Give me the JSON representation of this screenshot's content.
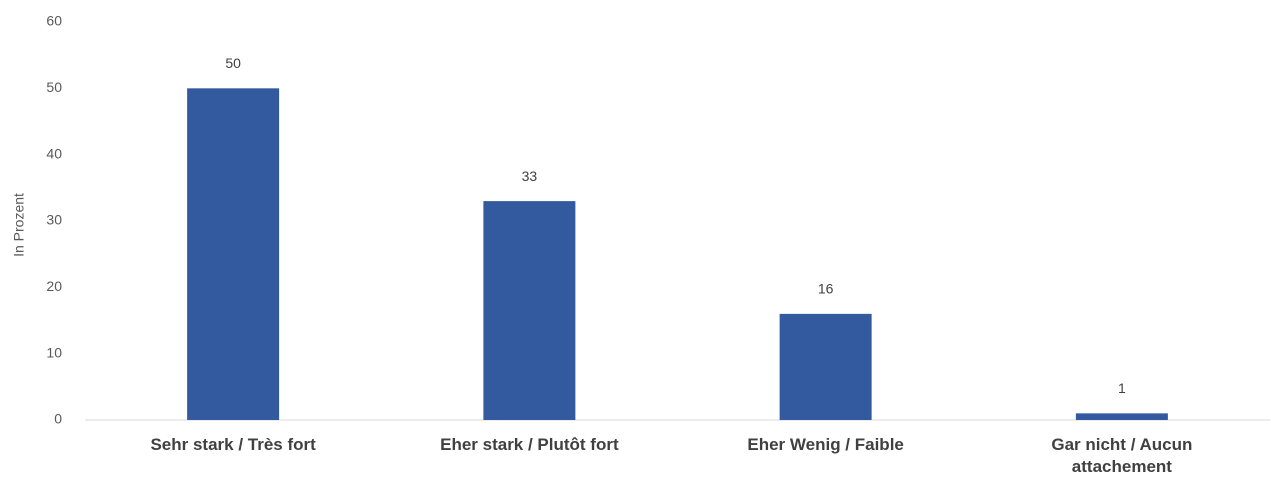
{
  "chart_data": {
    "type": "bar",
    "y_label": "In Prozent",
    "categories": [
      "Sehr stark / Très fort",
      "Eher stark / Plutôt fort",
      "Eher Wenig / Faible",
      "Gar nicht / Aucun attachement"
    ],
    "values": [
      50,
      33,
      16,
      1
    ],
    "color": "#335a9e",
    "ylim": [
      0,
      60
    ],
    "yticks": [
      0,
      10,
      20,
      30,
      40,
      50,
      60
    ],
    "grid": false
  }
}
